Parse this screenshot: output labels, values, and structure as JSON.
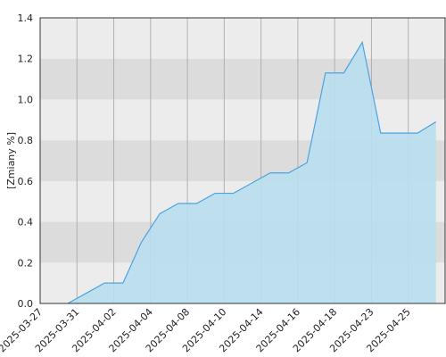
{
  "chart_data": {
    "type": "area",
    "y_label": "[Zmiany %]",
    "categories": [
      "2025-03-27",
      null,
      "2025-03-31",
      null,
      "2025-04-02",
      null,
      "2025-04-04",
      null,
      "2025-04-08",
      null,
      "2025-04-10",
      null,
      "2025-04-14",
      null,
      "2025-04-16",
      null,
      "2025-04-18",
      null,
      "2025-04-23",
      null,
      "2025-04-25",
      null
    ],
    "values": [
      null,
      0,
      0.05,
      0.1,
      0.1,
      0.3,
      0.44,
      0.49,
      0.49,
      0.54,
      0.54,
      0.59,
      0.64,
      0.64,
      0.69,
      1.13,
      1.13,
      1.28,
      0.835,
      0.835,
      0.835,
      0.89
    ],
    "color": "#4da3e0",
    "fill": "#b9deee",
    "ylim": [
      0,
      1.4
    ],
    "yticks": [
      {
        "value": 0,
        "label": "0.0"
      },
      0.2,
      0.4,
      0.6,
      0.8,
      {
        "value": 1,
        "label": "1.0"
      },
      1.2,
      1.4
    ],
    "band_colors": [
      "#ececec",
      "#dcdcdc"
    ]
  }
}
